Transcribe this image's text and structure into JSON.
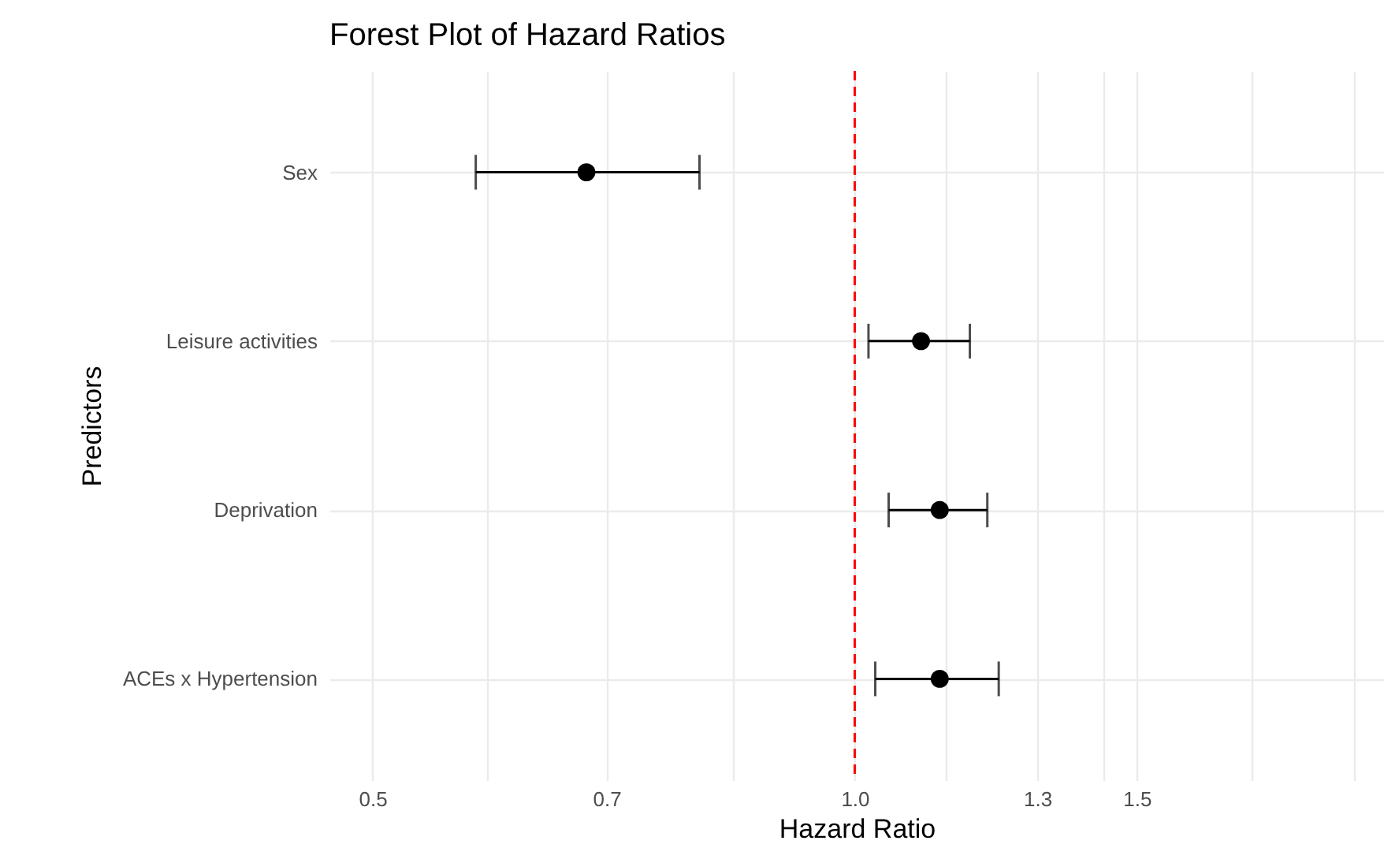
{
  "chart_data": {
    "type": "scatter",
    "orientation": "horizontal",
    "title": "Forest Plot of Hazard Ratios",
    "xlabel": "Hazard Ratio",
    "ylabel": "Predictors",
    "categories": [
      "Sex",
      "Leisure activities",
      "Deprivation",
      "ACEs x Hypertension"
    ],
    "series": [
      {
        "color": "#000000",
        "values": [
          0.68,
          1.1,
          1.13,
          1.13
        ],
        "errors": [
          [
            0.58,
            0.8
          ],
          [
            1.02,
            1.18
          ],
          [
            1.05,
            1.21
          ],
          [
            1.03,
            1.23
          ]
        ]
      }
    ],
    "log": "x",
    "xlim": [
      0.47,
      2.14
    ],
    "xticks": [
      0.5,
      {
        "value": 0.59,
        "label": null
      },
      0.7,
      {
        "value": 0.84,
        "label": null
      },
      {
        "value": 1.0,
        "label": "1.0"
      },
      {
        "value": 1.14,
        "label": null
      },
      1.3,
      {
        "value": 1.43,
        "label": null
      },
      1.5,
      {
        "value": 1.77,
        "label": null
      },
      {
        "value": 2.05,
        "label": null
      }
    ],
    "ref_lines": [
      {
        "axis": "x",
        "value": 1.0,
        "color": "#ff0000",
        "line_style": "dashed"
      }
    ],
    "grid": true,
    "marker": "circle"
  }
}
